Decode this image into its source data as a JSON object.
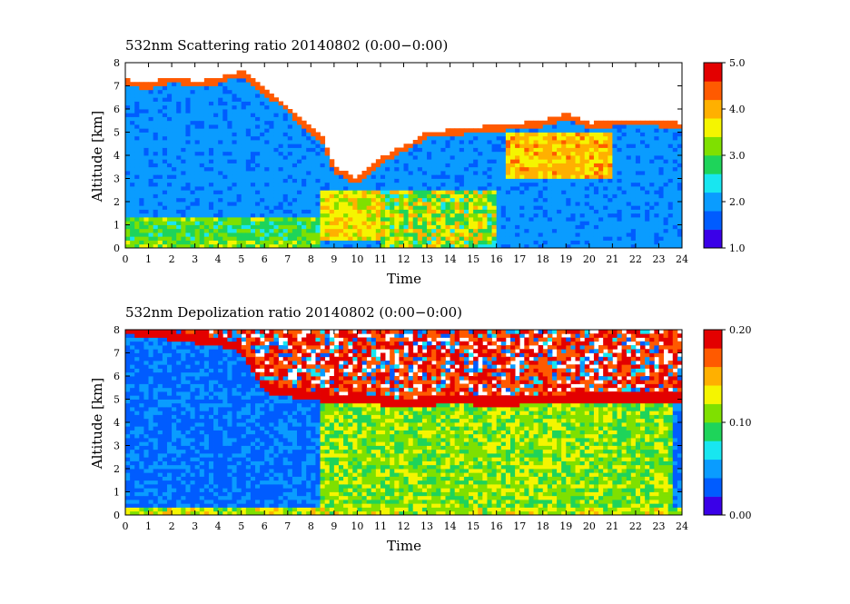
{
  "colors": {
    "colormap": [
      "#3a00e8",
      "#005cff",
      "#0a9cff",
      "#18e6f0",
      "#1ed45a",
      "#7fe000",
      "#f5f500",
      "#ffb000",
      "#ff5a00",
      "#e30000"
    ],
    "background": "#ffffff",
    "contour_line": "#c04000"
  },
  "chart_data": [
    {
      "type": "heatmap",
      "title": "532nm Scattering ratio  20140802 (0:00−0:00)",
      "xlabel": "Time",
      "ylabel": "Altitude [km]",
      "xlim": [
        0,
        24
      ],
      "ylim": [
        0,
        8
      ],
      "x_ticks": [
        "0",
        "1",
        "2",
        "3",
        "4",
        "5",
        "6",
        "7",
        "8",
        "9",
        "10",
        "11",
        "12",
        "13",
        "14",
        "15",
        "16",
        "17",
        "18",
        "19",
        "20",
        "21",
        "22",
        "23",
        "24"
      ],
      "y_ticks": [
        "0",
        "1",
        "2",
        "3",
        "4",
        "5",
        "6",
        "7",
        "8"
      ],
      "colorbar": {
        "min": 1.0,
        "max": 5.0,
        "tick_labels": [
          "5.0",
          "4.0",
          "3.0",
          "2.0",
          "1.0"
        ]
      },
      "cloud_top_km": [
        [
          0,
          7.3
        ],
        [
          1,
          7.1
        ],
        [
          2,
          7.4
        ],
        [
          3,
          7.2
        ],
        [
          4,
          7.3
        ],
        [
          5,
          7.7
        ],
        [
          6,
          6.9
        ],
        [
          7,
          6.1
        ],
        [
          8,
          5.2
        ],
        [
          8.5,
          4.8
        ],
        [
          9,
          3.5
        ],
        [
          10,
          3.0
        ],
        [
          11,
          3.9
        ],
        [
          12,
          4.4
        ],
        [
          13,
          5.0
        ],
        [
          14,
          5.1
        ],
        [
          15,
          5.2
        ],
        [
          16,
          5.3
        ],
        [
          17,
          5.4
        ],
        [
          18,
          5.5
        ],
        [
          19,
          5.8
        ],
        [
          20,
          5.4
        ],
        [
          21,
          5.5
        ],
        [
          22,
          5.5
        ],
        [
          23,
          5.5
        ],
        [
          24,
          5.4
        ]
      ],
      "layers": [
        {
          "x": [
            0,
            8.5
          ],
          "base_km": 0.3,
          "top_km": 1.2,
          "value": 2.9
        },
        {
          "x": [
            8.5,
            11.5
          ],
          "base_km": 0.4,
          "top_km": 2.5,
          "value": 3.6
        },
        {
          "x": [
            16.5,
            21
          ],
          "base_km": 3.0,
          "top_km": 5.0,
          "value": 3.9
        }
      ]
    },
    {
      "type": "heatmap",
      "title": "532nm Depolization ratio  20140802 (0:00−0:00)",
      "xlabel": "Time",
      "ylabel": "Altitude [km]",
      "xlim": [
        0,
        24
      ],
      "ylim": [
        0,
        8
      ],
      "x_ticks": [
        "0",
        "1",
        "2",
        "3",
        "4",
        "5",
        "6",
        "7",
        "8",
        "9",
        "10",
        "11",
        "12",
        "13",
        "14",
        "15",
        "16",
        "17",
        "18",
        "19",
        "20",
        "21",
        "22",
        "23",
        "24"
      ],
      "y_ticks": [
        "0",
        "1",
        "2",
        "3",
        "4",
        "5",
        "6",
        "7",
        "8"
      ],
      "colorbar": {
        "min": 0.0,
        "max": 0.2,
        "tick_labels": [
          "0.20",
          "0.10",
          "0.00"
        ]
      },
      "cloud_top_km": [
        [
          0,
          8.0
        ],
        [
          4,
          7.5
        ],
        [
          5,
          7.2
        ],
        [
          6,
          5.5
        ],
        [
          7,
          5.3
        ],
        [
          8,
          5.2
        ],
        [
          9,
          5.0
        ],
        [
          10,
          5.1
        ],
        [
          12,
          4.8
        ],
        [
          14,
          5.0
        ],
        [
          16,
          4.9
        ],
        [
          18,
          5.0
        ],
        [
          20,
          5.1
        ],
        [
          22,
          5.1
        ],
        [
          24,
          5.1
        ]
      ],
      "layers": [
        {
          "x": [
            8.5,
            23.5
          ],
          "base_km": 0.2,
          "top_km": 4.8,
          "value": 0.11
        },
        {
          "x": [
            0,
            24
          ],
          "base_km": 0.0,
          "top_km": 0.3,
          "value": 0.12
        }
      ]
    }
  ]
}
